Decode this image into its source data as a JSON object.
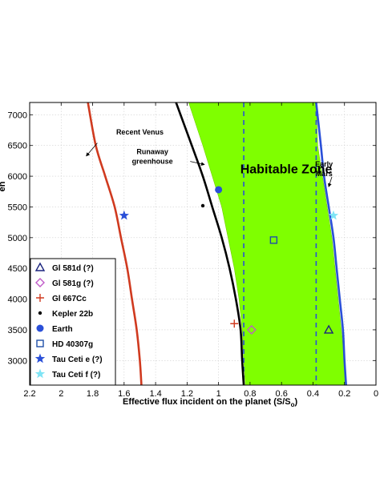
{
  "chart_data": {
    "type": "line",
    "xlabel": "Effective flux incident on the planet (S/S",
    "xlabel_sub": "o",
    "xlabel_close": ")",
    "ylabel": "en",
    "xlim": [
      2.2,
      0
    ],
    "ylim": [
      2600,
      7200
    ],
    "x_reversed": true,
    "grid": true,
    "x_ticks": [
      "2.2",
      "2",
      "1.8",
      "1.6",
      "1.4",
      "1.2",
      "1",
      "0.8",
      "0.6",
      "0.4",
      "0.2",
      "0"
    ],
    "x_tick_values": [
      2.2,
      2.0,
      1.8,
      1.6,
      1.4,
      1.2,
      1.0,
      0.8,
      0.6,
      0.4,
      0.2,
      0
    ],
    "y_ticks": [
      "3000",
      "3500",
      "4000",
      "4500",
      "5000",
      "5500",
      "6000",
      "6500",
      "7000"
    ],
    "y_tick_values": [
      3000,
      3500,
      4000,
      4500,
      5000,
      5500,
      6000,
      6500,
      7000
    ],
    "curves": [
      {
        "key": "recent_venus",
        "color": "#d03a1f",
        "points": [
          [
            1.83,
            7200
          ],
          [
            1.78,
            6500
          ],
          [
            1.72,
            6000
          ],
          [
            1.66,
            5500
          ],
          [
            1.62,
            5000
          ],
          [
            1.58,
            4500
          ],
          [
            1.55,
            4000
          ],
          [
            1.52,
            3500
          ],
          [
            1.5,
            3000
          ],
          [
            1.49,
            2600
          ]
        ]
      },
      {
        "key": "runaway_greenhouse",
        "color": "#000000",
        "points": [
          [
            1.27,
            7200
          ],
          [
            1.17,
            6500
          ],
          [
            1.1,
            6000
          ],
          [
            1.04,
            5500
          ],
          [
            0.98,
            5000
          ],
          [
            0.93,
            4500
          ],
          [
            0.89,
            4000
          ],
          [
            0.86,
            3500
          ],
          [
            0.85,
            3000
          ],
          [
            0.84,
            2600
          ]
        ]
      },
      {
        "key": "early_mars",
        "color": "#2a4fd8",
        "points": [
          [
            0.38,
            7200
          ],
          [
            0.35,
            6500
          ],
          [
            0.33,
            6000
          ],
          [
            0.3,
            5500
          ],
          [
            0.27,
            5000
          ],
          [
            0.25,
            4500
          ],
          [
            0.23,
            4000
          ],
          [
            0.21,
            3500
          ],
          [
            0.2,
            3000
          ],
          [
            0.19,
            2600
          ]
        ]
      }
    ],
    "hz_fill": {
      "color": "#7fff00",
      "inner": [
        [
          1.19,
          7200
        ],
        [
          1.1,
          6500
        ],
        [
          1.04,
          6000
        ],
        [
          0.98,
          5500
        ],
        [
          0.94,
          5000
        ],
        [
          0.9,
          4500
        ],
        [
          0.87,
          4000
        ],
        [
          0.85,
          3500
        ],
        [
          0.84,
          3000
        ],
        [
          0.83,
          2600
        ]
      ],
      "outer": [
        [
          0.38,
          7200
        ],
        [
          0.37,
          6500
        ],
        [
          0.34,
          6000
        ],
        [
          0.31,
          5500
        ],
        [
          0.28,
          5000
        ],
        [
          0.26,
          4500
        ],
        [
          0.24,
          4000
        ],
        [
          0.22,
          3500
        ],
        [
          0.2,
          3000
        ],
        [
          0.19,
          2600
        ]
      ]
    },
    "dashed_lines": [
      0.84,
      0.38
    ],
    "dashed_color": "#2a4fd8",
    "hz_label": "Habitable Zone",
    "annotations": [
      {
        "key": "recent_venus",
        "text": [
          "Recent Venus"
        ],
        "text_at": [
          1.5,
          6680
        ],
        "arrow_from": [
          1.77,
          6540
        ],
        "arrow_to": [
          1.84,
          6330
        ]
      },
      {
        "key": "runaway",
        "text": [
          "Runaway",
          "greenhouse"
        ],
        "text_at": [
          1.42,
          6360
        ],
        "arrow_from": [
          1.18,
          6240
        ],
        "arrow_to": [
          1.09,
          6190
        ]
      },
      {
        "key": "early_mars",
        "text": [
          "Early",
          "Mars"
        ],
        "text_at": [
          0.33,
          6160
        ],
        "arrow_from": [
          0.28,
          5990
        ],
        "arrow_to": [
          0.3,
          5830
        ]
      }
    ],
    "points": [
      {
        "name": "Gl 581d (?)",
        "x": 0.3,
        "y": 3500,
        "marker": "triangle",
        "color": "#1a237e"
      },
      {
        "name": "Gl 581g (?)",
        "x": 0.79,
        "y": 3500,
        "marker": "diamond",
        "color": "#c05ac8"
      },
      {
        "name": "Gl 667Cc",
        "x": 0.9,
        "y": 3600,
        "marker": "plus",
        "color": "#d03a1f"
      },
      {
        "name": "Kepler 22b",
        "x": 1.1,
        "y": 5520,
        "marker": "dot",
        "color": "#000000"
      },
      {
        "name": "Earth",
        "x": 1.0,
        "y": 5780,
        "marker": "circle",
        "color": "#2a4fd8"
      },
      {
        "name": "HD 40307g",
        "x": 0.65,
        "y": 4960,
        "marker": "square",
        "color": "#1f4fa8"
      },
      {
        "name": "Tau Ceti e (?)",
        "x": 1.6,
        "y": 5360,
        "marker": "star",
        "color": "#2a4fd8"
      },
      {
        "name": "Tau Ceti f (?)",
        "x": 0.27,
        "y": 5360,
        "marker": "star",
        "color": "#7fe4f5"
      }
    ]
  }
}
